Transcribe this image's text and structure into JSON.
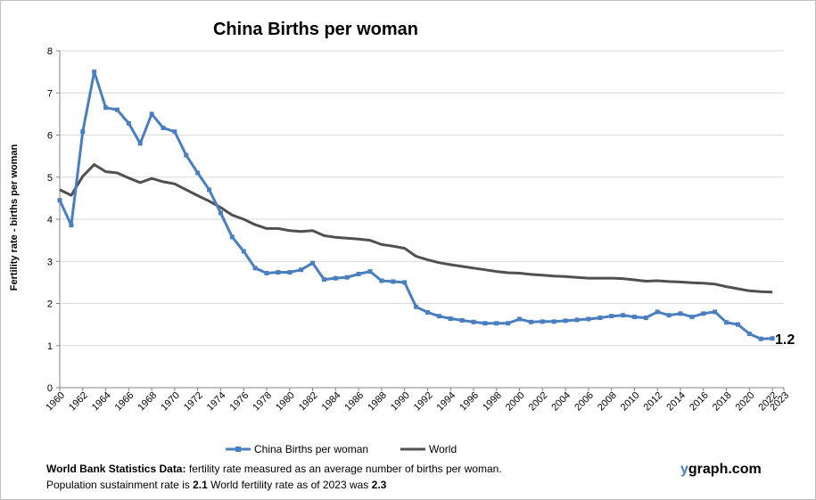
{
  "chart_data": {
    "type": "line",
    "title": "China Births per woman",
    "xlabel": "",
    "ylabel": "Fertility rate  - births per woman",
    "ylim": [
      0,
      8
    ],
    "yticks": [
      0,
      1,
      2,
      3,
      4,
      5,
      6,
      7,
      8
    ],
    "xlim": [
      1960,
      2023
    ],
    "xticks": [
      "1960",
      "1962",
      "1964",
      "1966",
      "1968",
      "1970",
      "1972",
      "1974",
      "1976",
      "1978",
      "1980",
      "1982",
      "1984",
      "1986",
      "1988",
      "1990",
      "1992",
      "1994",
      "1996",
      "1998",
      "2000",
      "2002",
      "2004",
      "2006",
      "2008",
      "2010",
      "2012",
      "2014",
      "2016",
      "2018",
      "2020",
      "2022",
      "2023"
    ],
    "grid": "horizontal",
    "legend_position": "bottom",
    "end_label": "1.2",
    "series": [
      {
        "name": "China Births per woman",
        "color": "#4a7fbf",
        "markers": true,
        "x": [
          1960,
          1961,
          1962,
          1963,
          1964,
          1965,
          1966,
          1967,
          1968,
          1969,
          1970,
          1971,
          1972,
          1973,
          1974,
          1975,
          1976,
          1977,
          1978,
          1979,
          1980,
          1981,
          1982,
          1983,
          1984,
          1985,
          1986,
          1987,
          1988,
          1989,
          1990,
          1991,
          1992,
          1993,
          1994,
          1995,
          1996,
          1997,
          1998,
          1999,
          2000,
          2001,
          2002,
          2003,
          2004,
          2005,
          2006,
          2007,
          2008,
          2009,
          2010,
          2011,
          2012,
          2013,
          2014,
          2015,
          2016,
          2017,
          2018,
          2019,
          2020,
          2021,
          2022
        ],
        "values": [
          4.45,
          3.86,
          6.08,
          7.5,
          6.65,
          6.6,
          6.28,
          5.8,
          6.5,
          6.17,
          6.08,
          5.52,
          5.1,
          4.7,
          4.15,
          3.58,
          3.24,
          2.84,
          2.72,
          2.74,
          2.74,
          2.8,
          2.96,
          2.57,
          2.6,
          2.62,
          2.7,
          2.76,
          2.54,
          2.52,
          2.5,
          1.92,
          1.79,
          1.7,
          1.64,
          1.6,
          1.56,
          1.53,
          1.53,
          1.53,
          1.63,
          1.56,
          1.57,
          1.57,
          1.59,
          1.61,
          1.63,
          1.66,
          1.7,
          1.72,
          1.68,
          1.66,
          1.8,
          1.72,
          1.76,
          1.68,
          1.76,
          1.8,
          1.55,
          1.5,
          1.28,
          1.16,
          1.17
        ]
      },
      {
        "name": "World",
        "color": "#505050",
        "markers": false,
        "x": [
          1960,
          1961,
          1962,
          1963,
          1964,
          1965,
          1966,
          1967,
          1968,
          1969,
          1970,
          1971,
          1972,
          1973,
          1974,
          1975,
          1976,
          1977,
          1978,
          1979,
          1980,
          1981,
          1982,
          1983,
          1984,
          1985,
          1986,
          1987,
          1988,
          1989,
          1990,
          1991,
          1992,
          1993,
          1994,
          1995,
          1996,
          1997,
          1998,
          1999,
          2000,
          2001,
          2002,
          2003,
          2004,
          2005,
          2006,
          2007,
          2008,
          2009,
          2010,
          2011,
          2012,
          2013,
          2014,
          2015,
          2016,
          2017,
          2018,
          2019,
          2020,
          2021,
          2022
        ],
        "values": [
          4.7,
          4.57,
          5.02,
          5.3,
          5.13,
          5.1,
          4.98,
          4.87,
          4.97,
          4.89,
          4.84,
          4.7,
          4.56,
          4.43,
          4.28,
          4.1,
          4.0,
          3.87,
          3.78,
          3.78,
          3.73,
          3.71,
          3.73,
          3.61,
          3.57,
          3.55,
          3.53,
          3.5,
          3.4,
          3.36,
          3.31,
          3.12,
          3.04,
          2.97,
          2.92,
          2.88,
          2.84,
          2.8,
          2.76,
          2.73,
          2.72,
          2.69,
          2.67,
          2.65,
          2.64,
          2.62,
          2.6,
          2.6,
          2.6,
          2.59,
          2.56,
          2.53,
          2.54,
          2.52,
          2.51,
          2.49,
          2.48,
          2.46,
          2.4,
          2.35,
          2.3,
          2.28,
          2.27
        ]
      }
    ]
  },
  "footnote": {
    "line1_bold": "World Bank Statistics Data:",
    "line1_text": " fertility rate measured as an average number  of births per woman.",
    "line2_text_a": "Population sustainment rate is ",
    "line2_bold_a": "2.1",
    "line2_text_b": "    World fertility rate as of 2023 was ",
    "line2_bold_b": "2.3"
  },
  "brand": {
    "y": "y",
    "rest": "graph.com"
  }
}
